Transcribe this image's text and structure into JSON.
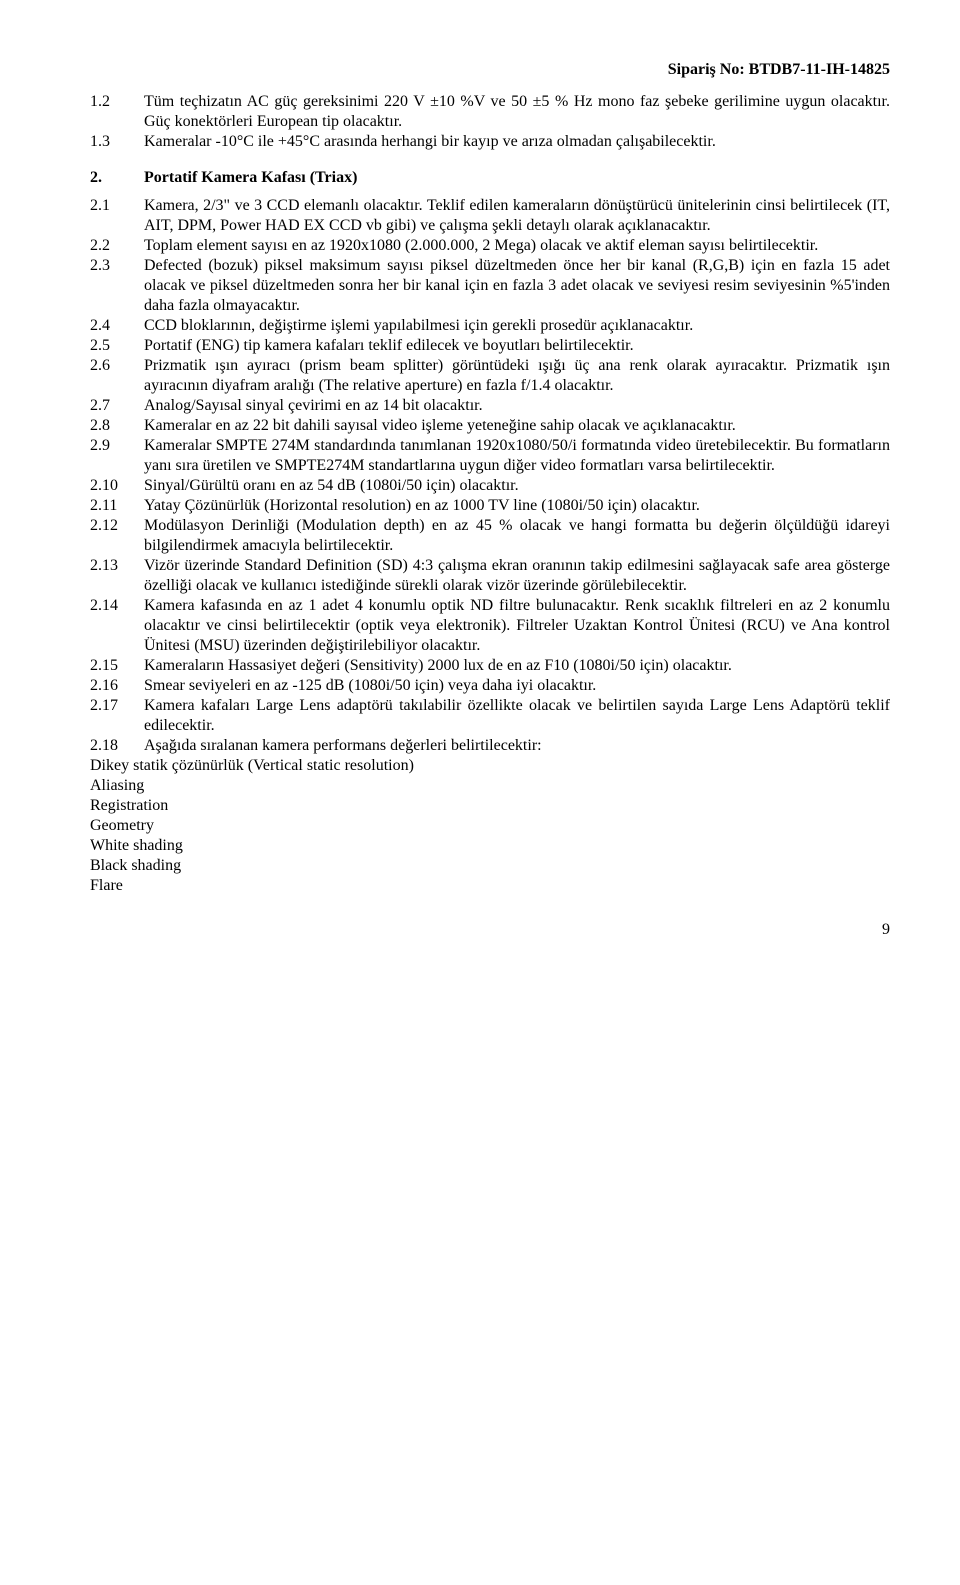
{
  "header": "Sipariş No: BTDB7-11-IH-14825",
  "items_top": [
    {
      "num": "1.2",
      "txt": "Tüm teçhizatın AC güç gereksinimi 220 V ±10 %V ve 50 ±5 % Hz mono faz şebeke gerilimine uygun olacaktır. Güç konektörleri European tip olacaktır."
    },
    {
      "num": "1.3",
      "txt": "Kameralar -10°C ile +45°C arasında herhangi bir kayıp ve arıza olmadan çalışabilecektir."
    }
  ],
  "section": {
    "num": "2.",
    "txt": "Portatif Kamera Kafası (Triax)"
  },
  "items": [
    {
      "num": "2.1",
      "txt": "Kamera, 2/3\" ve 3 CCD elemanlı olacaktır. Teklif edilen kameraların dönüştürücü ünitelerinin cinsi belirtilecek (IT, AIT, DPM, Power HAD EX CCD vb gibi) ve çalışma şekli detaylı olarak açıklanacaktır."
    },
    {
      "num": "2.2",
      "txt": "Toplam element sayısı en az 1920x1080 (2.000.000, 2 Mega) olacak ve aktif eleman sayısı belirtilecektir."
    },
    {
      "num": "2.3",
      "txt": "Defected (bozuk) piksel maksimum sayısı piksel düzeltmeden önce her bir kanal (R,G,B) için en fazla 15 adet olacak ve piksel düzeltmeden sonra her bir kanal için en fazla 3 adet olacak ve seviyesi resim seviyesinin %5'inden daha fazla olmayacaktır."
    },
    {
      "num": "2.4",
      "txt": "CCD bloklarının, değiştirme işlemi yapılabilmesi için gerekli prosedür açıklanacaktır."
    },
    {
      "num": "2.5",
      "txt": "Portatif (ENG) tip kamera kafaları teklif edilecek ve boyutları belirtilecektir."
    },
    {
      "num": "2.6",
      "txt": "Prizmatik ışın ayıracı (prism beam splitter) görüntüdeki ışığı üç ana renk olarak ayıracaktır. Prizmatik ışın ayıracının diyafram aralığı (The relative aperture) en fazla f/1.4 olacaktır."
    },
    {
      "num": "2.7",
      "txt": "Analog/Sayısal sinyal çevirimi en az 14 bit olacaktır."
    },
    {
      "num": "2.8",
      "txt": "Kameralar en az 22 bit dahili sayısal video işleme yeteneğine sahip olacak ve açıklanacaktır."
    },
    {
      "num": "2.9",
      "txt": "Kameralar SMPTE 274M standardında tanımlanan 1920x1080/50/i formatında video üretebilecektir. Bu formatların yanı sıra üretilen ve SMPTE274M standartlarına uygun diğer video formatları varsa belirtilecektir."
    },
    {
      "num": "2.10",
      "txt": "Sinyal/Gürültü oranı en az 54 dB (1080i/50 için) olacaktır."
    },
    {
      "num": "2.11",
      "txt": "Yatay Çözünürlük (Horizontal resolution) en az 1000 TV line (1080i/50 için) olacaktır."
    },
    {
      "num": "2.12",
      "txt": "Modülasyon Derinliği (Modulation depth) en az 45 % olacak ve hangi formatta bu değerin ölçüldüğü idareyi bilgilendirmek amacıyla belirtilecektir."
    },
    {
      "num": "2.13",
      "txt": "Vizör üzerinde Standard Definition (SD) 4:3 çalışma ekran oranının takip edilmesini sağlayacak safe area gösterge özelliği olacak ve kullanıcı istediğinde sürekli olarak vizör üzerinde görülebilecektir."
    },
    {
      "num": "2.14",
      "txt": "Kamera kafasında en az 1 adet 4 konumlu optik ND filtre bulunacaktır. Renk sıcaklık filtreleri en az 2 konumlu olacaktır ve cinsi belirtilecektir (optik veya elektronik). Filtreler Uzaktan Kontrol Ünitesi (RCU) ve Ana kontrol Ünitesi (MSU) üzerinden değiştirilebiliyor olacaktır."
    },
    {
      "num": "2.15",
      "txt": "Kameraların Hassasiyet değeri (Sensitivity) 2000 lux de en az F10 (1080i/50 için) olacaktır."
    },
    {
      "num": "2.16",
      "txt": "Smear seviyeleri en az -125 dB (1080i/50 için) veya daha iyi olacaktır."
    },
    {
      "num": "2.17",
      "txt": "Kamera kafaları Large Lens adaptörü takılabilir özellikte olacak ve belirtilen sayıda Large Lens Adaptörü teklif edilecektir."
    },
    {
      "num": "2.18",
      "txt": "Aşağıda sıralanan kamera performans değerleri belirtilecektir:"
    }
  ],
  "tail_lines": [
    "Dikey statik çözünürlük (Vertical static resolution)",
    "Aliasing",
    "Registration",
    "Geometry",
    "White shading",
    "Black shading",
    "Flare"
  ],
  "page_number": "9"
}
